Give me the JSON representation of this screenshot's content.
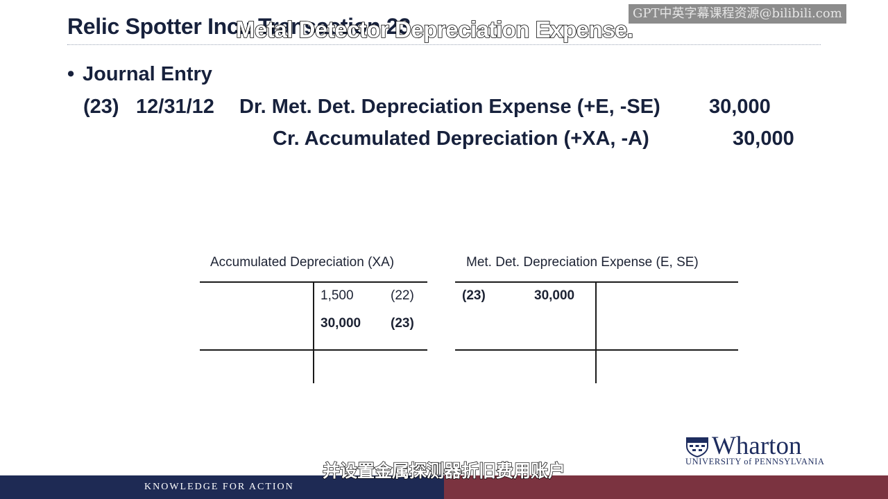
{
  "slide": {
    "title": "Relic Spotter Inc.: Transaction 23",
    "bullet": "Journal Entry",
    "journal_entry": {
      "number": "(23)",
      "date": "12/31/12",
      "debit": "Dr. Met. Det. Depreciation Expense (+E, -SE)",
      "debit_amount": "30,000",
      "credit": "Cr. Accumulated Depreciation (+XA, -A)",
      "credit_amount": "30,000"
    },
    "t_accounts": [
      {
        "title": "Accumulated Depreciation (XA)",
        "right_entries": [
          {
            "amount": "1,500",
            "ref": "(22)"
          },
          {
            "amount": "30,000",
            "ref": "(23)"
          }
        ]
      },
      {
        "title": "Met. Det. Depreciation Expense (E, SE)",
        "left_entries": [
          {
            "ref": "(23)",
            "amount": "30,000"
          }
        ]
      }
    ]
  },
  "captions": {
    "english": "Metal Detector Depreciation Expense.",
    "chinese": "并设置金属探测器折旧费用账户"
  },
  "watermark": "GPT中英字幕课程资源@bilibili.com",
  "logo": {
    "name": "Wharton",
    "subtitle": "UNIVERSITY of PENNSYLVANIA"
  },
  "footer": {
    "tagline": "KNOWLEDGE FOR ACTION"
  },
  "colors": {
    "title_text": "#17213c",
    "footer_navy": "#1e2a54",
    "footer_maroon": "#7b3340",
    "logo_navy": "#1e2d5f"
  }
}
